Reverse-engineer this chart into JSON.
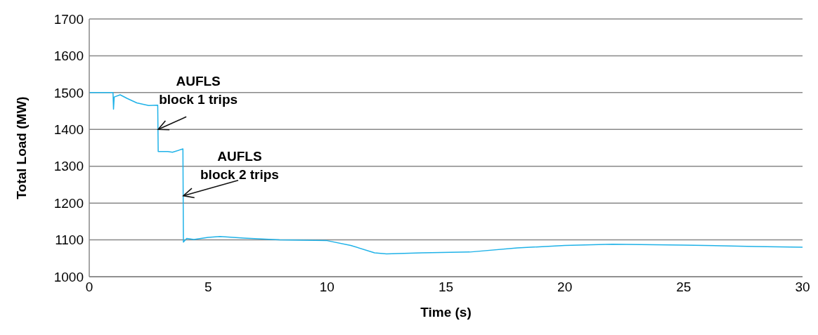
{
  "chart_data": {
    "type": "line",
    "xlabel": "Time (s)",
    "ylabel": "Total Load (MW)",
    "x": [
      0,
      1.0,
      1.02,
      1.05,
      1.3,
      1.6,
      2.0,
      2.5,
      2.88,
      2.9,
      3.0,
      3.3,
      3.5,
      3.94,
      3.96,
      4.1,
      4.4,
      5,
      5.5,
      6.5,
      8,
      10,
      11,
      12,
      12.5,
      14,
      16,
      18,
      20,
      22,
      25,
      28,
      30
    ],
    "values": [
      1500,
      1500,
      1455,
      1488,
      1494,
      1484,
      1472,
      1465,
      1466,
      1340,
      1340,
      1340,
      1338,
      1347,
      1094,
      1104,
      1101,
      1107,
      1109,
      1105,
      1100,
      1098,
      1085,
      1065,
      1062,
      1065,
      1067,
      1078,
      1085,
      1088,
      1086,
      1082,
      1080
    ],
    "color": "#1fb2e8",
    "xlim": [
      0,
      30
    ],
    "xticks": [
      0,
      5,
      10,
      15,
      20,
      25,
      30
    ],
    "ylim": [
      1000,
      1700
    ],
    "yticks": [
      1000,
      1100,
      1200,
      1300,
      1400,
      1500,
      1600,
      1700
    ],
    "grid": "y",
    "marker": "none",
    "line_style": "solid",
    "annotations": [
      {
        "text": "AUFLS\nblock 1 trips",
        "x": 2.9,
        "y": 1400
      },
      {
        "text": "AUFLS\nblock 2 trips",
        "x": 3.96,
        "y": 1220
      }
    ]
  }
}
